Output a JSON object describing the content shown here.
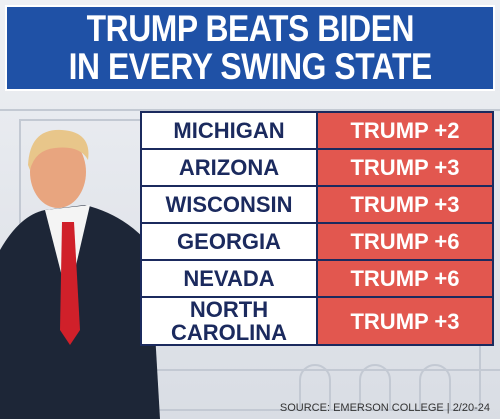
{
  "header": {
    "title": [
      "TRUMP BEATS BIDEN",
      "IN EVERY SWING STATE"
    ]
  },
  "table": {
    "rows": [
      [
        "MICHIGAN",
        "TRUMP +2"
      ],
      [
        "ARIZONA",
        "TRUMP +3"
      ],
      [
        "WISCONSIN",
        "TRUMP +3"
      ],
      [
        "GEORGIA",
        "TRUMP +6"
      ],
      [
        "NEVADA",
        "TRUMP +6"
      ],
      [
        "NORTH CAROLINA",
        "TRUMP +3"
      ]
    ]
  },
  "footer": {
    "source": "SOURCE: EMERSON COLLEGE | 2/20-24"
  }
}
